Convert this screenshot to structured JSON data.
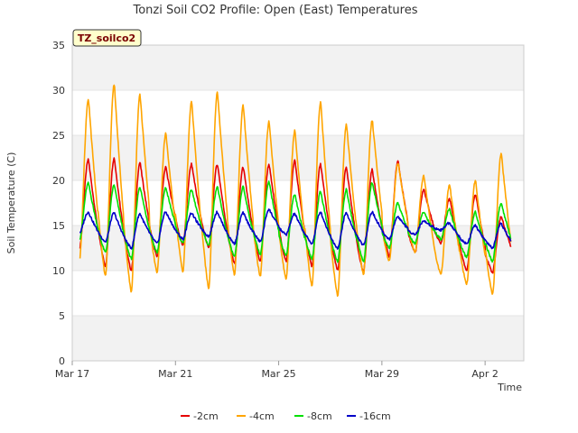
{
  "chart_data": {
    "type": "line",
    "title": "Tonzi Soil CO2 Profile: Open (East) Temperatures",
    "xlabel": "Time",
    "ylabel": "Soil Temperature (C)",
    "badge": "TZ_soilco2",
    "ylim": [
      0,
      35
    ],
    "yticks": [
      0,
      5,
      10,
      15,
      20,
      25,
      30,
      35
    ],
    "x_axis_dates": [
      "Mar 17",
      "Mar 21",
      "Mar 25",
      "Mar 29",
      "Apr 2"
    ],
    "x_axis_offsets_days": [
      0,
      4,
      8,
      12,
      16
    ],
    "xlim_days": [
      0,
      17.5
    ],
    "x_start_day": 0.3,
    "grid": "horizontal bands",
    "legend_position": "bottom",
    "series": [
      {
        "name": "-2cm",
        "color": "#e60000",
        "daily_max": [
          22.3,
          22.5,
          22.0,
          21.5,
          21.8,
          21.8,
          21.5,
          21.8,
          22.2,
          21.8,
          21.5,
          21.2,
          22.2,
          19.0,
          18.0,
          18.5,
          16.0,
          18.8,
          12.0
        ],
        "daily_min": [
          12.5,
          10.5,
          10.0,
          11.5,
          12.8,
          12.5,
          10.8,
          11.0,
          11.0,
          10.5,
          10.0,
          9.8,
          11.5,
          12.0,
          13.0,
          10.0,
          9.8,
          11.0,
          11.2
        ]
      },
      {
        "name": "-4cm",
        "color": "#ffa500",
        "daily_max": [
          29.0,
          30.7,
          29.5,
          25.2,
          28.8,
          29.8,
          28.3,
          26.5,
          25.5,
          28.7,
          26.2,
          26.7,
          22.0,
          20.5,
          19.5,
          20.0,
          23.0,
          11.0
        ],
        "daily_min": [
          11.3,
          9.3,
          7.6,
          9.8,
          9.8,
          8.0,
          9.5,
          9.3,
          9.0,
          8.2,
          7.2,
          9.5,
          11.0,
          12.0,
          9.5,
          8.5,
          7.3,
          8.0,
          10.0
        ]
      },
      {
        "name": "-8cm",
        "color": "#00e000",
        "daily_max": [
          19.7,
          19.5,
          19.3,
          19.2,
          19.0,
          19.3,
          19.3,
          19.8,
          18.5,
          18.8,
          19.0,
          19.8,
          17.5,
          16.5,
          16.8,
          16.5,
          17.5,
          12.0
        ],
        "daily_min": [
          13.5,
          12.0,
          11.3,
          12.0,
          13.0,
          12.8,
          11.5,
          11.8,
          11.7,
          11.3,
          11.0,
          11.0,
          12.5,
          13.0,
          13.5,
          11.5,
          11.0,
          11.5,
          11.5
        ]
      },
      {
        "name": "-16cm",
        "color": "#0000c8",
        "daily_max": [
          16.5,
          16.4,
          16.3,
          16.5,
          16.4,
          16.5,
          16.4,
          16.8,
          16.3,
          16.5,
          16.4,
          16.5,
          16.0,
          15.5,
          15.3,
          15.0,
          15.2,
          12.7
        ],
        "daily_min": [
          14.2,
          13.2,
          12.5,
          13.0,
          13.5,
          13.8,
          13.0,
          13.2,
          14.0,
          13.0,
          12.5,
          12.8,
          13.5,
          14.0,
          14.5,
          13.0,
          12.5,
          12.3,
          12.5
        ]
      }
    ]
  }
}
